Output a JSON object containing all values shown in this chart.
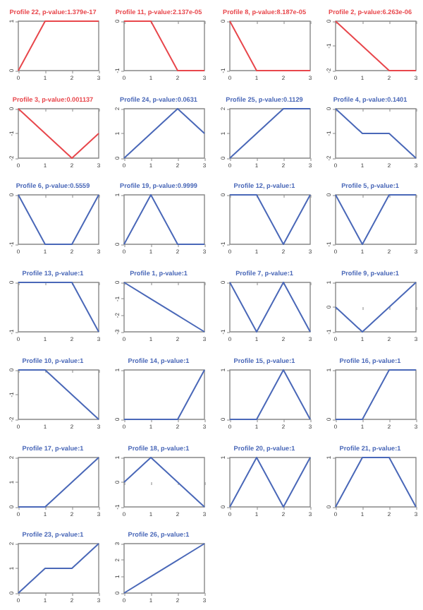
{
  "chart_data": [
    {
      "type": "line",
      "title": "Profile 22, p-value:1.379e-17",
      "x": [
        0,
        1,
        2,
        3
      ],
      "values": [
        0,
        1,
        1,
        1
      ],
      "color": "#e8474c",
      "xlim": [
        0,
        3
      ],
      "xticks": [
        0,
        1,
        2,
        3
      ],
      "ylim": [
        0,
        1
      ],
      "yticks": [
        0,
        1
      ]
    },
    {
      "type": "line",
      "title": "Profile 11, p-value:2.137e-05",
      "x": [
        0,
        1,
        2,
        3
      ],
      "values": [
        0,
        0,
        -1,
        -1
      ],
      "color": "#e8474c",
      "xlim": [
        0,
        3
      ],
      "xticks": [
        0,
        1,
        2,
        3
      ],
      "ylim": [
        -1,
        0
      ],
      "yticks": [
        -1,
        0
      ]
    },
    {
      "type": "line",
      "title": "Profile 8, p-value:8.187e-05",
      "x": [
        0,
        1,
        2,
        3
      ],
      "values": [
        0,
        -1,
        -1,
        -1
      ],
      "color": "#e8474c",
      "xlim": [
        0,
        3
      ],
      "xticks": [
        0,
        1,
        2,
        3
      ],
      "ylim": [
        -1,
        0
      ],
      "yticks": [
        -1,
        0
      ]
    },
    {
      "type": "line",
      "title": "Profile 2, p-value:6.263e-06",
      "x": [
        0,
        1,
        2,
        3
      ],
      "values": [
        0,
        -1,
        -2,
        -2
      ],
      "color": "#e8474c",
      "xlim": [
        0,
        3
      ],
      "xticks": [
        0,
        1,
        2,
        3
      ],
      "ylim": [
        -2,
        0
      ],
      "yticks": [
        -2,
        -1,
        0
      ]
    },
    {
      "type": "line",
      "title": "Profile 3, p-value:0.001137",
      "x": [
        0,
        1,
        2,
        3
      ],
      "values": [
        0,
        -1,
        -2,
        -1
      ],
      "color": "#e8474c",
      "xlim": [
        0,
        3
      ],
      "xticks": [
        0,
        1,
        2,
        3
      ],
      "ylim": [
        -2,
        0
      ],
      "yticks": [
        -2,
        -1,
        0
      ]
    },
    {
      "type": "line",
      "title": "Profile 24, p-value:0.0631",
      "x": [
        0,
        1,
        2,
        3
      ],
      "values": [
        0,
        1,
        2,
        1
      ],
      "color": "#4a68b8",
      "xlim": [
        0,
        3
      ],
      "xticks": [
        0,
        1,
        2,
        3
      ],
      "ylim": [
        0,
        2
      ],
      "yticks": [
        0,
        1,
        2
      ]
    },
    {
      "type": "line",
      "title": "Profile 25, p-value:0.1129",
      "x": [
        0,
        1,
        2,
        3
      ],
      "values": [
        0,
        1,
        2,
        2
      ],
      "color": "#4a68b8",
      "xlim": [
        0,
        3
      ],
      "xticks": [
        0,
        1,
        2,
        3
      ],
      "ylim": [
        0,
        2
      ],
      "yticks": [
        0,
        1,
        2
      ]
    },
    {
      "type": "line",
      "title": "Profile 4, p-value:0.1401",
      "x": [
        0,
        1,
        2,
        3
      ],
      "values": [
        0,
        -1,
        -1,
        -2
      ],
      "color": "#4a68b8",
      "xlim": [
        0,
        3
      ],
      "xticks": [
        0,
        1,
        2,
        3
      ],
      "ylim": [
        -2,
        0
      ],
      "yticks": [
        -2,
        -1,
        0
      ]
    },
    {
      "type": "line",
      "title": "Profile 6, p-value:0.5559",
      "x": [
        0,
        1,
        2,
        3
      ],
      "values": [
        0,
        -1,
        -1,
        0
      ],
      "color": "#4a68b8",
      "xlim": [
        0,
        3
      ],
      "xticks": [
        0,
        1,
        2,
        3
      ],
      "ylim": [
        -1,
        0
      ],
      "yticks": [
        -1,
        0
      ]
    },
    {
      "type": "line",
      "title": "Profile 19, p-value:0.9999",
      "x": [
        0,
        1,
        2,
        3
      ],
      "values": [
        0,
        1,
        0,
        0
      ],
      "color": "#4a68b8",
      "xlim": [
        0,
        3
      ],
      "xticks": [
        0,
        1,
        2,
        3
      ],
      "ylim": [
        0,
        1
      ],
      "yticks": [
        0,
        1
      ]
    },
    {
      "type": "line",
      "title": "Profile 12, p-value:1",
      "x": [
        0,
        1,
        2,
        3
      ],
      "values": [
        0,
        0,
        -1,
        0
      ],
      "color": "#4a68b8",
      "xlim": [
        0,
        3
      ],
      "xticks": [
        0,
        1,
        2,
        3
      ],
      "ylim": [
        -1,
        0
      ],
      "yticks": [
        -1,
        0
      ]
    },
    {
      "type": "line",
      "title": "Profile 5, p-value:1",
      "x": [
        0,
        1,
        2,
        3
      ],
      "values": [
        0,
        -1,
        0,
        0
      ],
      "color": "#4a68b8",
      "xlim": [
        0,
        3
      ],
      "xticks": [
        0,
        1,
        2,
        3
      ],
      "ylim": [
        -1,
        0
      ],
      "yticks": [
        -1,
        0
      ]
    },
    {
      "type": "line",
      "title": "Profile 13, p-value:1",
      "x": [
        0,
        1,
        2,
        3
      ],
      "values": [
        0,
        0,
        0,
        -1
      ],
      "color": "#4a68b8",
      "xlim": [
        0,
        3
      ],
      "xticks": [
        0,
        1,
        2,
        3
      ],
      "ylim": [
        -1,
        0
      ],
      "yticks": [
        -1,
        0
      ]
    },
    {
      "type": "line",
      "title": "Profile 1, p-value:1",
      "x": [
        0,
        1,
        2,
        3
      ],
      "values": [
        0,
        -1,
        -2,
        -3
      ],
      "color": "#4a68b8",
      "xlim": [
        0,
        3
      ],
      "xticks": [
        0,
        1,
        2,
        3
      ],
      "ylim": [
        -3,
        0
      ],
      "yticks": [
        -3,
        -2,
        -1,
        0
      ]
    },
    {
      "type": "line",
      "title": "Profile 7, p-value:1",
      "x": [
        0,
        1,
        2,
        3
      ],
      "values": [
        0,
        -1,
        0,
        -1
      ],
      "color": "#4a68b8",
      "xlim": [
        0,
        3
      ],
      "xticks": [
        0,
        1,
        2,
        3
      ],
      "ylim": [
        -1,
        0
      ],
      "yticks": [
        -1,
        0
      ]
    },
    {
      "type": "line",
      "title": "Profile 9, p-value:1",
      "x": [
        0,
        1,
        2,
        3
      ],
      "values": [
        0,
        -1,
        0,
        1
      ],
      "color": "#4a68b8",
      "xlim": [
        0,
        3
      ],
      "xticks": [
        0,
        1,
        2,
        3
      ],
      "ylim": [
        -1,
        1
      ],
      "yticks": [
        -1,
        0,
        1
      ]
    },
    {
      "type": "line",
      "title": "Profile 10, p-value:1",
      "x": [
        0,
        1,
        2,
        3
      ],
      "values": [
        0,
        0,
        -1,
        -2
      ],
      "color": "#4a68b8",
      "xlim": [
        0,
        3
      ],
      "xticks": [
        0,
        1,
        2,
        3
      ],
      "ylim": [
        -2,
        0
      ],
      "yticks": [
        -2,
        -1,
        0
      ]
    },
    {
      "type": "line",
      "title": "Profile 14, p-value:1",
      "x": [
        0,
        1,
        2,
        3
      ],
      "values": [
        0,
        0,
        0,
        1
      ],
      "color": "#4a68b8",
      "xlim": [
        0,
        3
      ],
      "xticks": [
        0,
        1,
        2,
        3
      ],
      "ylim": [
        0,
        1
      ],
      "yticks": [
        0,
        1
      ]
    },
    {
      "type": "line",
      "title": "Profile 15, p-value:1",
      "x": [
        0,
        1,
        2,
        3
      ],
      "values": [
        0,
        0,
        1,
        0
      ],
      "color": "#4a68b8",
      "xlim": [
        0,
        3
      ],
      "xticks": [
        0,
        1,
        2,
        3
      ],
      "ylim": [
        0,
        1
      ],
      "yticks": [
        0,
        1
      ]
    },
    {
      "type": "line",
      "title": "Profile 16, p-value:1",
      "x": [
        0,
        1,
        2,
        3
      ],
      "values": [
        0,
        0,
        1,
        1
      ],
      "color": "#4a68b8",
      "xlim": [
        0,
        3
      ],
      "xticks": [
        0,
        1,
        2,
        3
      ],
      "ylim": [
        0,
        1
      ],
      "yticks": [
        0,
        1
      ]
    },
    {
      "type": "line",
      "title": "Profile 17, p-value:1",
      "x": [
        0,
        1,
        2,
        3
      ],
      "values": [
        0,
        0,
        1,
        2
      ],
      "color": "#4a68b8",
      "xlim": [
        0,
        3
      ],
      "xticks": [
        0,
        1,
        2,
        3
      ],
      "ylim": [
        0,
        2
      ],
      "yticks": [
        0,
        1,
        2
      ]
    },
    {
      "type": "line",
      "title": "Profile 18, p-value:1",
      "x": [
        0,
        1,
        2,
        3
      ],
      "values": [
        0,
        1,
        0,
        -1
      ],
      "color": "#4a68b8",
      "xlim": [
        0,
        3
      ],
      "xticks": [
        0,
        1,
        2,
        3
      ],
      "ylim": [
        -1,
        1
      ],
      "yticks": [
        -1,
        0,
        1
      ]
    },
    {
      "type": "line",
      "title": "Profile 20, p-value:1",
      "x": [
        0,
        1,
        2,
        3
      ],
      "values": [
        0,
        1,
        0,
        1
      ],
      "color": "#4a68b8",
      "xlim": [
        0,
        3
      ],
      "xticks": [
        0,
        1,
        2,
        3
      ],
      "ylim": [
        0,
        1
      ],
      "yticks": [
        0,
        1
      ]
    },
    {
      "type": "line",
      "title": "Profile 21, p-value:1",
      "x": [
        0,
        1,
        2,
        3
      ],
      "values": [
        0,
        1,
        1,
        0
      ],
      "color": "#4a68b8",
      "xlim": [
        0,
        3
      ],
      "xticks": [
        0,
        1,
        2,
        3
      ],
      "ylim": [
        0,
        1
      ],
      "yticks": [
        0,
        1
      ]
    },
    {
      "type": "line",
      "title": "Profile 23, p-value:1",
      "x": [
        0,
        1,
        2,
        3
      ],
      "values": [
        0,
        1,
        1,
        2
      ],
      "color": "#4a68b8",
      "xlim": [
        0,
        3
      ],
      "xticks": [
        0,
        1,
        2,
        3
      ],
      "ylim": [
        0,
        2
      ],
      "yticks": [
        0,
        1,
        2
      ]
    },
    {
      "type": "line",
      "title": "Profile 26, p-value:1",
      "x": [
        0,
        1,
        2,
        3
      ],
      "values": [
        0,
        1,
        2,
        3
      ],
      "color": "#4a68b8",
      "xlim": [
        0,
        3
      ],
      "xticks": [
        0,
        1,
        2,
        3
      ],
      "ylim": [
        0,
        3
      ],
      "yticks": [
        0,
        1,
        2,
        3
      ]
    }
  ]
}
